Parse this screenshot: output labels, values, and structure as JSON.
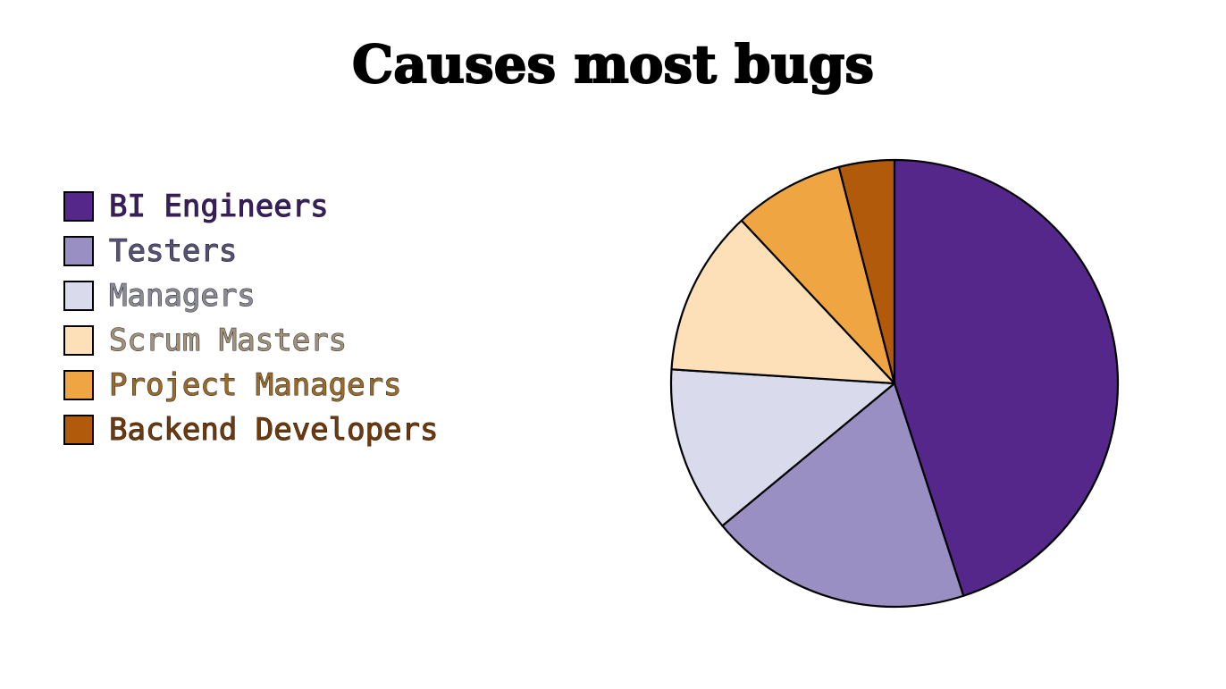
{
  "chart_data": {
    "type": "pie",
    "title": "Causes most bugs",
    "legend_placement": "left",
    "categories": [
      "BI Engineers",
      "Testers",
      "Managers",
      "Scrum Masters",
      "Project Managers",
      "Backend Developers"
    ],
    "values": [
      45,
      19,
      12,
      12,
      8,
      4
    ],
    "colors": [
      "#55278a",
      "#9a8fc3",
      "#d9dbec",
      "#fde0b7",
      "#f0a543",
      "#b25a0b"
    ],
    "label_colors": [
      "#3b1c64",
      "#555179",
      "#8a8b96",
      "#a2927b",
      "#9a6b2b",
      "#723907"
    ],
    "start_angle_deg": 0,
    "direction": "clockwise"
  }
}
